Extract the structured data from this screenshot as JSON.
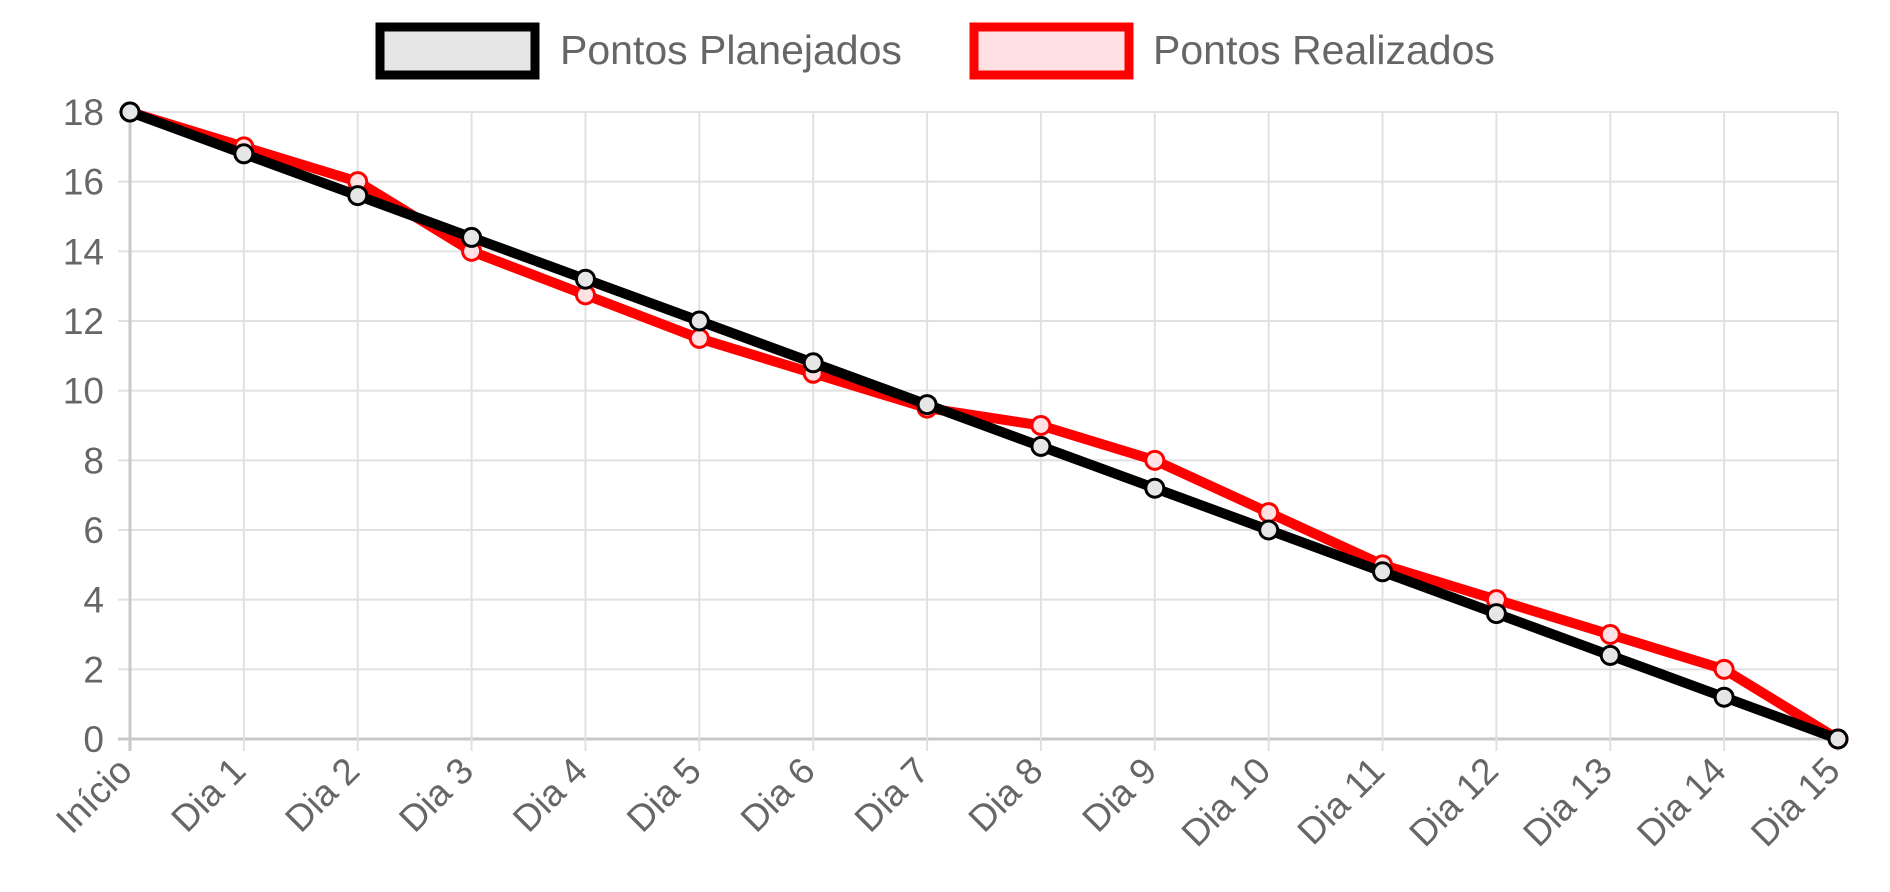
{
  "chart_data": {
    "type": "line",
    "categories": [
      "Início",
      "Dia 1",
      "Dia 2",
      "Dia 3",
      "Dia 4",
      "Dia 5",
      "Dia 6",
      "Dia 7",
      "Dia 8",
      "Dia 9",
      "Dia 10",
      "Dia 11",
      "Dia 12",
      "Dia 13",
      "Dia 14",
      "Dia 15"
    ],
    "series": [
      {
        "name": "Pontos Planejados",
        "color": "#000000",
        "fill": "#e6e6e6",
        "values": [
          18,
          16.8,
          15.6,
          14.4,
          13.2,
          12,
          10.8,
          9.6,
          8.4,
          7.2,
          6,
          4.8,
          3.6,
          2.4,
          1.2,
          0
        ]
      },
      {
        "name": "Pontos Realizados",
        "color": "#ff0000",
        "fill": "#ffe0e3",
        "values": [
          18,
          17,
          16,
          14,
          12.75,
          11.5,
          10.5,
          9.5,
          9,
          8,
          6.5,
          5,
          4,
          3,
          2,
          0
        ]
      }
    ],
    "title": "",
    "xlabel": "",
    "ylabel": "",
    "ylim": [
      0,
      18
    ],
    "yticks": [
      0,
      2,
      4,
      6,
      8,
      10,
      12,
      14,
      16,
      18
    ],
    "grid": true,
    "legend_position": "top"
  }
}
